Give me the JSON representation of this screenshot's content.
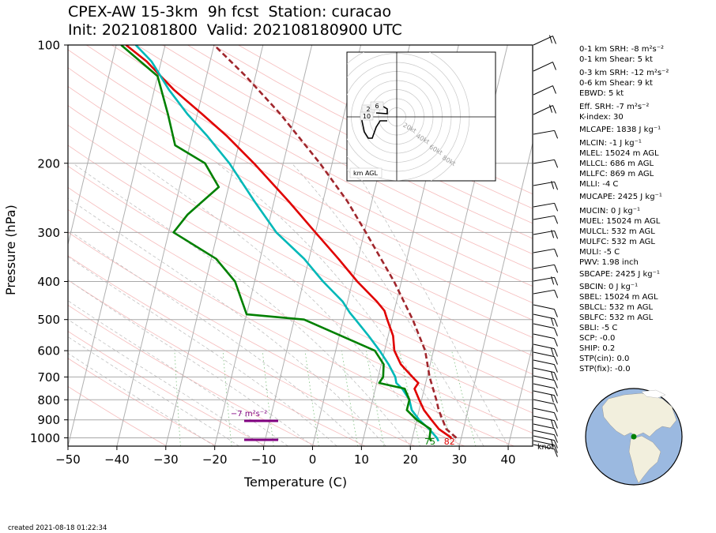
{
  "title": {
    "line1": "CPEX-AW 15-3km  9h fcst  Station: curacao",
    "line2": "Init: 2021081800  Valid: 202108180900 UTC"
  },
  "axes": {
    "xlabel": "Temperature (C)",
    "ylabel": "Pressure (hPa)",
    "xticks": [
      "−50",
      "−40",
      "−30",
      "−20",
      "−10",
      "0",
      "10",
      "20",
      "30",
      "40"
    ],
    "yticks": [
      "100",
      "200",
      "300",
      "400",
      "500",
      "600",
      "700",
      "800",
      "900",
      "1000"
    ],
    "knots_label": "knot"
  },
  "chart_data": {
    "type": "line",
    "title": "CPEX-AW 15-3km  9h fcst  Station: curacao",
    "xlabel": "Temperature (C)",
    "ylabel": "Pressure (hPa)",
    "xlim": [
      -50,
      45
    ],
    "ylim": [
      1050,
      100
    ],
    "yscale": "log",
    "skew": true,
    "series": [
      {
        "color": "#e00000",
        "points": [
          [
            1000,
            28
          ],
          [
            950,
            25
          ],
          [
            900,
            23
          ],
          [
            850,
            21
          ],
          [
            800,
            19.5
          ],
          [
            750,
            18
          ],
          [
            725,
            18.5
          ],
          [
            700,
            17
          ],
          [
            650,
            14
          ],
          [
            600,
            12
          ],
          [
            550,
            11
          ],
          [
            500,
            9
          ],
          [
            475,
            8
          ],
          [
            450,
            6
          ],
          [
            400,
            1
          ],
          [
            350,
            -4
          ],
          [
            300,
            -10
          ],
          [
            250,
            -17
          ],
          [
            200,
            -26
          ],
          [
            170,
            -33
          ],
          [
            150,
            -39
          ],
          [
            130,
            -46
          ],
          [
            110,
            -53
          ],
          [
            100,
            -58
          ]
        ]
      },
      {
        "color": "#00b8b8",
        "points": [
          [
            1020,
            25.5
          ],
          [
            1000,
            25
          ],
          [
            950,
            23
          ],
          [
            900,
            20.5
          ],
          [
            850,
            18.5
          ],
          [
            800,
            17.5
          ],
          [
            750,
            15.5
          ],
          [
            725,
            14
          ],
          [
            700,
            13.5
          ],
          [
            650,
            11.5
          ],
          [
            600,
            9
          ],
          [
            550,
            6
          ],
          [
            500,
            2.5
          ],
          [
            480,
            1
          ],
          [
            450,
            -1
          ],
          [
            400,
            -6
          ],
          [
            350,
            -11
          ],
          [
            300,
            -18
          ],
          [
            250,
            -24
          ],
          [
            200,
            -31
          ],
          [
            170,
            -37
          ],
          [
            150,
            -42
          ],
          [
            130,
            -47
          ],
          [
            110,
            -52
          ],
          [
            100,
            -56
          ]
        ]
      },
      {
        "color": "#008000",
        "points": [
          [
            1020,
            24
          ],
          [
            1000,
            23.5
          ],
          [
            950,
            23.3
          ],
          [
            900,
            20
          ],
          [
            850,
            17.5
          ],
          [
            800,
            17.5
          ],
          [
            750,
            16
          ],
          [
            725,
            10.5
          ],
          [
            700,
            11
          ],
          [
            650,
            10.5
          ],
          [
            600,
            8
          ],
          [
            500,
            -8
          ],
          [
            485,
            -20
          ],
          [
            400,
            -24
          ],
          [
            350,
            -29
          ],
          [
            300,
            -39
          ],
          [
            270,
            -37
          ],
          [
            230,
            -32
          ],
          [
            200,
            -36
          ],
          [
            180,
            -43
          ],
          [
            150,
            -46
          ],
          [
            120,
            -50
          ],
          [
            100,
            -59
          ]
        ]
      },
      {
        "color": "#a0262c",
        "dashed": true,
        "points": [
          [
            1000,
            29
          ],
          [
            950,
            26.5
          ],
          [
            900,
            25.3
          ],
          [
            850,
            24
          ],
          [
            800,
            23
          ],
          [
            700,
            20.5
          ],
          [
            600,
            18.3
          ],
          [
            500,
            14.2
          ],
          [
            400,
            8.5
          ],
          [
            300,
            0.3
          ],
          [
            250,
            -5
          ],
          [
            200,
            -12.5
          ],
          [
            150,
            -23
          ],
          [
            120,
            -32
          ],
          [
            100,
            -40
          ]
        ]
      }
    ],
    "annotations": [
      {
        "text": "75",
        "color": "#008000",
        "x": 24,
        "p": 1040
      },
      {
        "text": "82",
        "color": "#e00000",
        "x": 28,
        "p": 1040
      },
      {
        "text": "−7 m²s⁻²",
        "color": "#800080",
        "x": -13,
        "p": 880
      }
    ],
    "hodograph": {
      "label": "km AGL",
      "ring_labels": [
        "20kt",
        "40kt",
        "60kt",
        "80kt"
      ],
      "height_labels": [
        "2",
        "6",
        "10"
      ]
    }
  },
  "stats": [
    "0-1 km SRH: -8 m²s⁻²",
    "0-1 km Shear: 5 kt",
    "0-3 km SRH: -12 m²s⁻²",
    "0-6 km Shear: 9 kt",
    "EBWD: 5 kt",
    "Eff. SRH: -7 m²s⁻²",
    "K-index: 30",
    "MLCAPE: 1838 J kg⁻¹",
    "MLCIN: -1 J kg⁻¹",
    "MLEL: 15024 m AGL",
    "MLLCL: 686 m AGL",
    "MLLFC: 869 m AGL",
    "MLLI: -4 C",
    "MUCAPE: 2425 J kg⁻¹",
    "MUCIN: 0 J kg⁻¹",
    "MUEL: 15024 m AGL",
    "MULCL: 532 m AGL",
    "MULFC: 532 m AGL",
    "MULI: -5 C",
    "PWV: 1.98 inch",
    "SBCAPE: 2425 J kg⁻¹",
    "SBCIN: 0 J kg⁻¹",
    "SBEL: 15024 m AGL",
    "SBLCL: 532 m AGL",
    "SBLFC: 532 m AGL",
    "SBLI: -5 C",
    "SCP: -0.0",
    "SHIP: 0.2",
    "STP(cin): 0.0",
    "STP(fix): -0.0"
  ],
  "created": "created 2021-08-18 01:22:34"
}
